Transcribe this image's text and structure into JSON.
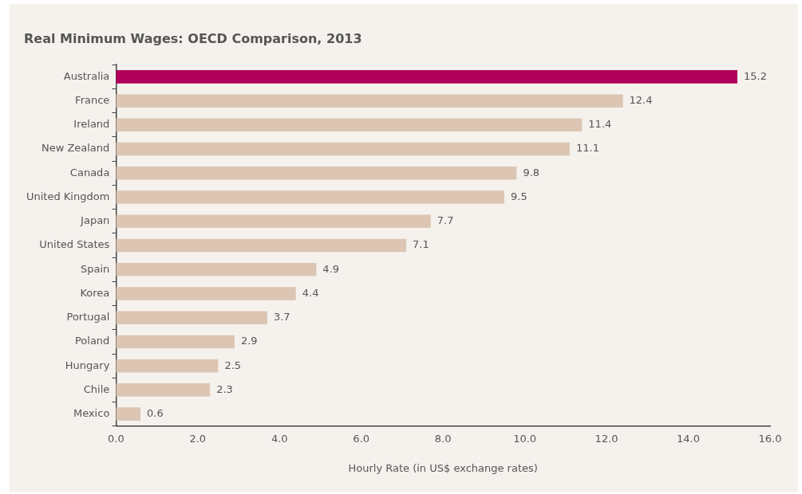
{
  "chart_data": {
    "type": "bar",
    "orientation": "horizontal",
    "title": "Real Minimum Wages: OECD Comparison, 2013",
    "xlabel": "Hourly Rate (in US$ exchange rates)",
    "categories": [
      "Australia",
      "France",
      "Ireland",
      "New Zealand",
      "Canada",
      "United Kingdom",
      "Japan",
      "United States",
      "Spain",
      "Korea",
      "Portugal",
      "Poland",
      "Hungary",
      "Chile",
      "Mexico"
    ],
    "values": [
      15.2,
      12.4,
      11.4,
      11.1,
      9.8,
      9.5,
      7.7,
      7.1,
      4.9,
      4.4,
      3.7,
      2.9,
      2.5,
      2.3,
      0.6
    ],
    "colors": [
      "#b0005a",
      "#dcc6b3",
      "#dcc6b3",
      "#dcc6b3",
      "#dcc6b3",
      "#dcc6b3",
      "#dcc6b3",
      "#dcc6b3",
      "#dcc6b3",
      "#dcc6b3",
      "#dcc6b3",
      "#dcc6b3",
      "#dcc6b3",
      "#dcc6b3",
      "#dcc6b3"
    ],
    "xlim": [
      0,
      16
    ],
    "xticks": [
      {
        "value": 0,
        "label": "0.0"
      },
      {
        "value": 2,
        "label": "2.0"
      },
      {
        "value": 4,
        "label": "4.0"
      },
      {
        "value": 6,
        "label": "6.0"
      },
      {
        "value": 8,
        "label": "8.0"
      },
      {
        "value": 10,
        "label": "10.0"
      },
      {
        "value": 12,
        "label": "12.0"
      },
      {
        "value": 14,
        "label": "14.0"
      },
      {
        "value": 16,
        "label": "16.0"
      }
    ],
    "data_labels": true,
    "grid": false,
    "legend": false
  }
}
